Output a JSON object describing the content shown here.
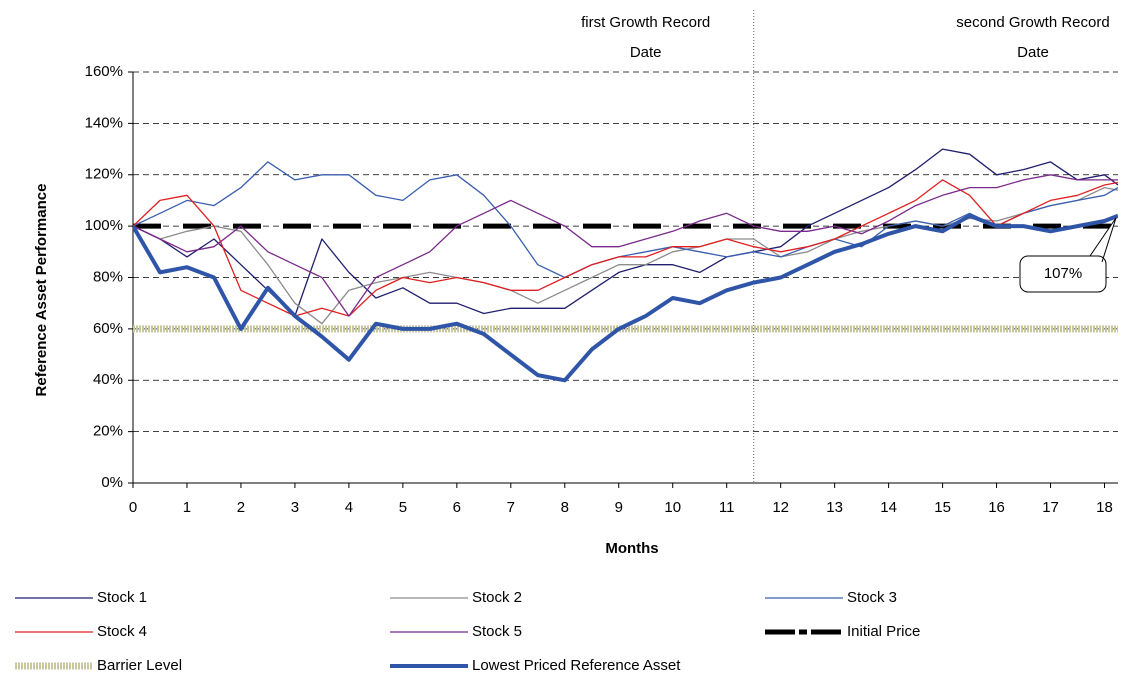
{
  "chart_data": {
    "type": "line",
    "y_axis_label": "Reference Asset Performance",
    "x_axis_label": "Months",
    "x": [
      0,
      0.5,
      1,
      1.5,
      2,
      2.5,
      3,
      3.5,
      4,
      4.5,
      5,
      5.5,
      6,
      6.5,
      7,
      7.5,
      8,
      8.5,
      9,
      9.5,
      10,
      10.5,
      11,
      11.5,
      12,
      12.5,
      13,
      13.5,
      14,
      14.5,
      15,
      15.5,
      16,
      16.5,
      17,
      17.5,
      18,
      18.25
    ],
    "xlim": [
      0,
      18.25
    ],
    "xticks": [
      0,
      1,
      2,
      3,
      4,
      5,
      6,
      7,
      8,
      9,
      10,
      11,
      12,
      13,
      14,
      15,
      16,
      17,
      18
    ],
    "ylim": [
      0,
      160
    ],
    "yticks": [
      {
        "value": 0,
        "label": "0%"
      },
      {
        "value": 20,
        "label": "20%"
      },
      {
        "value": 40,
        "label": "40%"
      },
      {
        "value": 60,
        "label": "60%"
      },
      {
        "value": 80,
        "label": "80%"
      },
      {
        "value": 100,
        "label": "100%"
      },
      {
        "value": 120,
        "label": "120%"
      },
      {
        "value": 140,
        "label": "140%"
      },
      {
        "value": 160,
        "label": "160%"
      }
    ],
    "grid": true,
    "series": [
      {
        "name": "Stock 1",
        "color": "#1f1f6e",
        "width": 1.3,
        "values": [
          100,
          95,
          88,
          95,
          85,
          75,
          65,
          95,
          82,
          72,
          76,
          70,
          70,
          66,
          68,
          68,
          68,
          75,
          82,
          85,
          85,
          82,
          88,
          90,
          92,
          100,
          105,
          110,
          115,
          122,
          130,
          128,
          120,
          122,
          125,
          118,
          120,
          116
        ]
      },
      {
        "name": "Stock 2",
        "color": "#8c8c8c",
        "width": 1.3,
        "values": [
          100,
          95,
          98,
          100,
          98,
          85,
          70,
          62,
          75,
          78,
          80,
          82,
          80,
          78,
          75,
          70,
          75,
          80,
          85,
          85,
          90,
          92,
          95,
          95,
          88,
          90,
          95,
          98,
          100,
          102,
          100,
          103,
          102,
          105,
          108,
          110,
          115,
          114
        ]
      },
      {
        "name": "Stock 3",
        "color": "#3a5fb0",
        "width": 1.3,
        "values": [
          100,
          105,
          110,
          108,
          115,
          125,
          118,
          120,
          120,
          112,
          110,
          118,
          120,
          112,
          100,
          85,
          80,
          85,
          88,
          90,
          92,
          90,
          88,
          90,
          88,
          92,
          95,
          92,
          100,
          102,
          100,
          105,
          100,
          105,
          108,
          110,
          112,
          115
        ]
      },
      {
        "name": "Stock 4",
        "color": "#e02020",
        "width": 1.3,
        "values": [
          100,
          110,
          112,
          100,
          75,
          70,
          65,
          68,
          65,
          75,
          80,
          78,
          80,
          78,
          75,
          75,
          80,
          85,
          88,
          88,
          92,
          92,
          95,
          92,
          90,
          92,
          95,
          100,
          105,
          110,
          118,
          112,
          100,
          105,
          110,
          112,
          116,
          117
        ]
      },
      {
        "name": "Stock 5",
        "color": "#7a2a8a",
        "width": 1.3,
        "values": [
          100,
          95,
          90,
          92,
          100,
          90,
          85,
          80,
          65,
          80,
          85,
          90,
          100,
          105,
          110,
          105,
          100,
          92,
          92,
          95,
          98,
          102,
          105,
          100,
          98,
          98,
          100,
          97,
          102,
          108,
          112,
          115,
          115,
          118,
          120,
          118,
          118,
          118
        ]
      },
      {
        "name": "Lowest Priced Reference Asset",
        "color": "#2f55a8",
        "width": 4,
        "values": [
          100,
          82,
          84,
          80,
          60,
          76,
          65,
          57,
          48,
          62,
          60,
          60,
          62,
          58,
          50,
          42,
          40,
          52,
          60,
          65,
          72,
          70,
          75,
          78,
          80,
          85,
          90,
          93,
          97,
          100,
          98,
          104,
          100,
          100,
          98,
          100,
          102,
          104
        ]
      }
    ],
    "reference_lines": [
      {
        "name": "Initial Price",
        "level": 100,
        "color": "#000000"
      },
      {
        "name": "Barrier Level",
        "level": 60,
        "color": "#c8c8a0"
      }
    ],
    "record_dates": [
      {
        "x": 11.5,
        "lines": [
          "first Growth Record",
          "Date"
        ]
      },
      {
        "x": 18.25,
        "lines": [
          "second Growth Record",
          "Date"
        ]
      }
    ],
    "callout": {
      "text": "107%"
    }
  }
}
